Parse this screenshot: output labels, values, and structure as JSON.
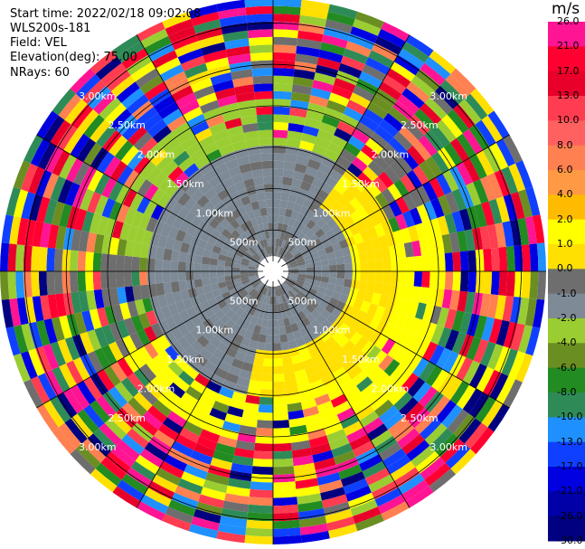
{
  "header": {
    "start_time": "Start time: 2022/02/18 09:02:08",
    "instrument": "WLS200s-181",
    "field": "Field: VEL",
    "elevation": "Elevation(deg): 75.00",
    "nrays": "NRays: 60"
  },
  "colorbar": {
    "unit": "m/s",
    "ticks": [
      "26.0",
      "21.0",
      "17.0",
      "13.0",
      "10.0",
      "8.0",
      "6.0",
      "4.0",
      "2.0",
      "1.0",
      "0.0",
      "-1.0",
      "-2.0",
      "-4.0",
      "-6.0",
      "-8.0",
      "-10.0",
      "-13.0",
      "-17.0",
      "-21.0",
      "-26.0",
      "-30.0"
    ],
    "colors": [
      "#ff1493",
      "#ff0030",
      "#e8002a",
      "#ff3c50",
      "#ff6060",
      "#ff8050",
      "#ff9944",
      "#ffbb00",
      "#ffff00",
      "#ffe000",
      "#6e6e6e",
      "#7e8a96",
      "#9acd32",
      "#6b8e23",
      "#228b22",
      "#2e8b57",
      "#1e90ff",
      "#1040ff",
      "#0000e0",
      "#0000a8",
      "#000080",
      "#000060"
    ]
  },
  "chart_data": {
    "type": "ppi",
    "field": "VEL",
    "unit": "m/s",
    "n_rays": 60,
    "range_ring_labels_km": [
      "500m",
      "1.00km",
      "1.50km",
      "2.00km",
      "2.50km",
      "3.00km"
    ],
    "range_rings_km": [
      0.5,
      1.0,
      1.5,
      2.0,
      2.5,
      3.0
    ],
    "color_levels": [
      -30.0,
      -26.0,
      -21.0,
      -17.0,
      -13.0,
      -10.0,
      -8.0,
      -6.0,
      -4.0,
      -2.0,
      -1.0,
      0.0,
      1.0,
      2.0,
      4.0,
      6.0,
      8.0,
      10.0,
      13.0,
      17.0,
      21.0,
      26.0
    ],
    "pattern": {
      "inner_gray_zone_km": 1.5,
      "receding_sector": "east/south (yellow, positive)",
      "approaching_sector": "north/west (green, negative)",
      "noise_beyond_km": 2.0
    }
  }
}
